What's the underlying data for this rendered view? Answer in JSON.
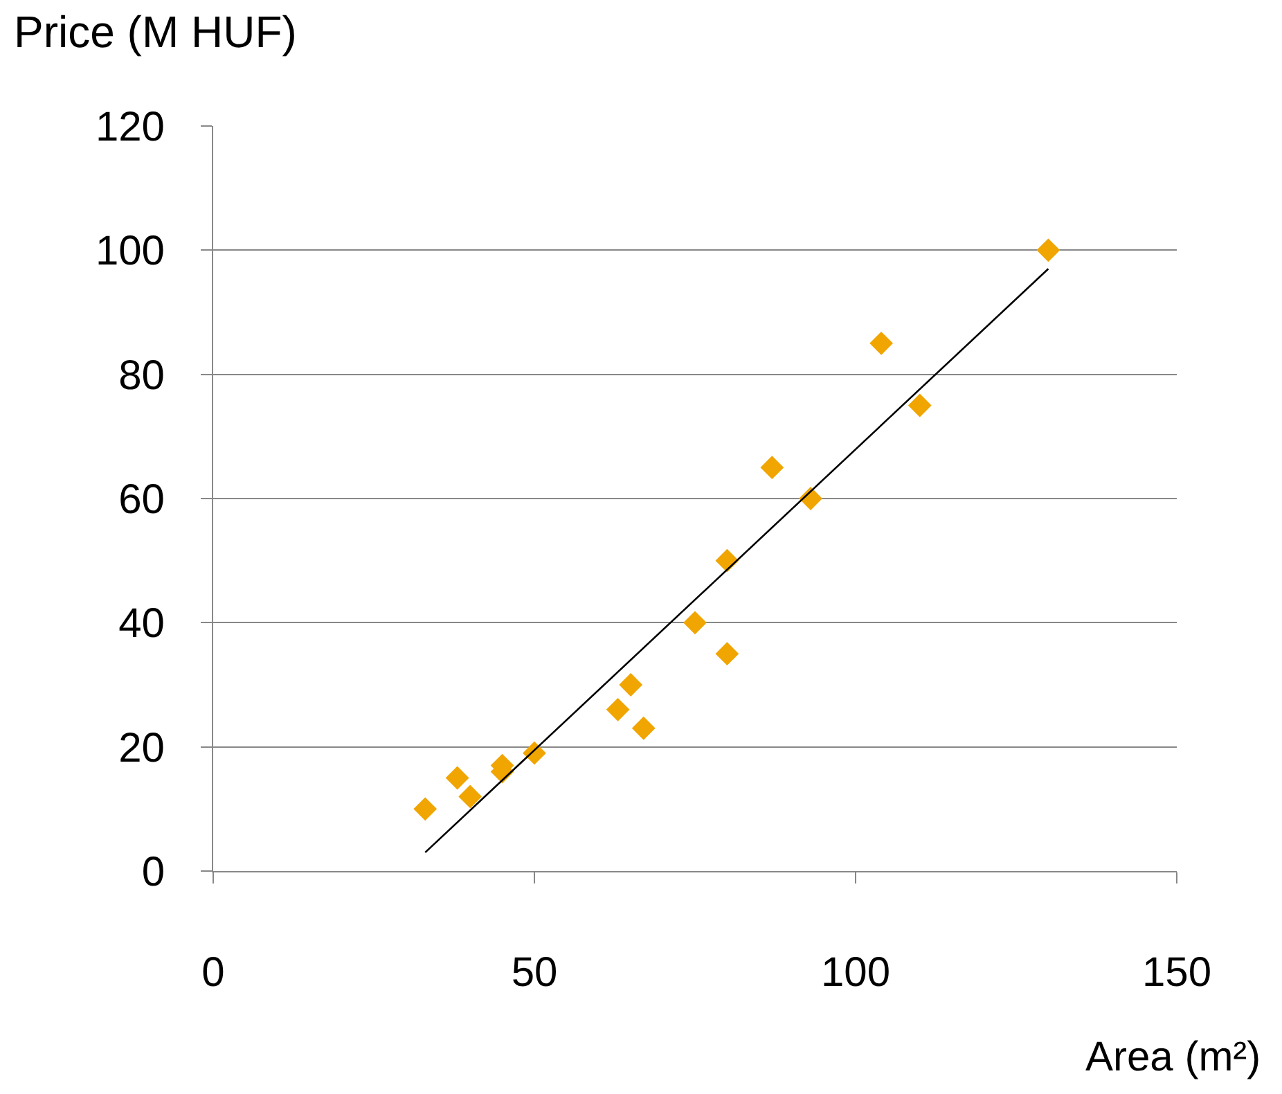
{
  "chart_data": {
    "type": "scatter",
    "xlabel": "Area (m²)",
    "ylabel": "Price (M HUF)",
    "series": [
      {
        "color": "#f0a500",
        "marker": "diamond",
        "x": [
          33,
          38,
          40,
          45,
          45,
          50,
          63,
          65,
          67,
          75,
          80,
          80,
          87,
          93,
          104,
          110,
          130
        ],
        "values": [
          10,
          15,
          12,
          17,
          16,
          19,
          26,
          30,
          23,
          40,
          50,
          35,
          65,
          60,
          85,
          75,
          100
        ]
      },
      {
        "type": "line",
        "color": "#000000",
        "x": [
          33,
          130
        ],
        "values": [
          3,
          97
        ]
      }
    ],
    "xlim": [
      0,
      150
    ],
    "xticks": [
      0,
      50,
      100,
      150
    ],
    "ylim": [
      0,
      120
    ],
    "yticks": [
      0,
      20,
      40,
      60,
      80,
      100,
      120
    ],
    "grid": "y"
  }
}
